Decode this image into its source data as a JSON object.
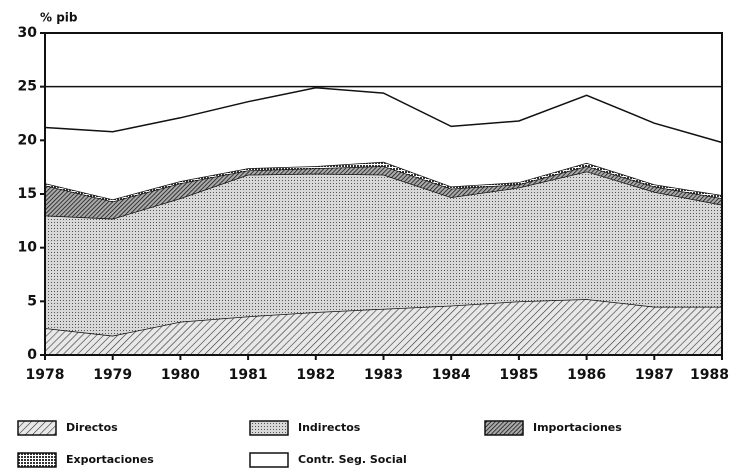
{
  "chart_data": {
    "type": "stacked_area",
    "y_label": "% pib",
    "categories": [
      "1978",
      "1979",
      "1980",
      "1981",
      "1982",
      "1983",
      "1984",
      "1985",
      "1986",
      "1987",
      "1988"
    ],
    "series": [
      {
        "name": "Directos",
        "pattern": "diag",
        "values": [
          2.5,
          1.8,
          3.1,
          3.6,
          4.0,
          4.3,
          4.6,
          5.0,
          5.2,
          4.5,
          4.5
        ]
      },
      {
        "name": "Indirectos",
        "pattern": "dots",
        "values": [
          10.5,
          10.9,
          11.5,
          13.2,
          12.9,
          12.5,
          10.1,
          10.6,
          11.9,
          10.7,
          9.5
        ]
      },
      {
        "name": "Importaciones",
        "pattern": "dense",
        "values": [
          2.8,
          1.6,
          1.4,
          0.4,
          0.5,
          0.8,
          0.8,
          0.3,
          0.5,
          0.5,
          0.6
        ]
      },
      {
        "name": "Exportaciones",
        "pattern": "grid",
        "values": [
          0.2,
          0.2,
          0.2,
          0.2,
          0.2,
          0.4,
          0.2,
          0.2,
          0.3,
          0.2,
          0.3
        ]
      },
      {
        "name": "Contr. Seg. Social",
        "pattern": "white",
        "values": [
          5.2,
          6.3,
          5.9,
          6.2,
          7.3,
          6.4,
          5.6,
          5.7,
          6.3,
          5.7,
          4.9
        ]
      }
    ],
    "ylim": [
      0,
      30
    ],
    "yticks": [
      0,
      5,
      10,
      15,
      20,
      25,
      30
    ],
    "reference_lines": [
      25
    ]
  }
}
